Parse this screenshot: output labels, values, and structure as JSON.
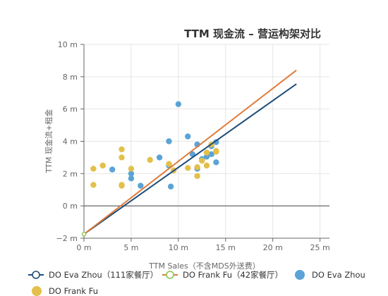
{
  "chart_data": {
    "type": "scatter",
    "title": "TTM 现金流 – 营运构架对比",
    "xlabel": "TTM Sales（不含MDS外送费）",
    "ylabel": "TTM 现金流+租金",
    "xlim": [
      0,
      26
    ],
    "ylim": [
      -2,
      10
    ],
    "x_ticks": [
      0,
      5,
      10,
      15,
      20,
      25
    ],
    "x_tick_labels": [
      "0 m",
      "5 m",
      "10 m",
      "15 m",
      "20 m",
      "25 m"
    ],
    "y_ticks": [
      -2,
      0,
      2,
      4,
      6,
      8,
      10
    ],
    "y_tick_labels": [
      "−2 m",
      "0 m",
      "2 m",
      "4 m",
      "6 m",
      "8 m",
      "10 m"
    ],
    "grid": true,
    "legend_position": "bottom",
    "series": [
      {
        "name": "DO Eva Zhou（111家餐厅）",
        "kind": "trendline",
        "color": "#1f4e79",
        "x": [
          0,
          22.5
        ],
        "y": [
          -1.75,
          7.55
        ]
      },
      {
        "name": "DO Frank Fu（42家餐厅）",
        "kind": "trendline",
        "color": "#e07b39",
        "x": [
          0,
          22.5
        ],
        "y": [
          -1.75,
          8.4
        ]
      },
      {
        "name": "DO Eva Zhou",
        "kind": "points",
        "color": "#5ba3d6",
        "x": [
          3,
          5,
          5,
          6,
          8,
          9,
          9.2,
          10,
          11,
          11.5,
          12,
          12.5,
          13,
          13,
          13.5,
          14,
          14,
          9,
          12,
          13.5
        ],
        "y": [
          2.25,
          2,
          1.7,
          1.25,
          3,
          4,
          1.2,
          6.3,
          4.3,
          3.2,
          3.8,
          2.9,
          3.05,
          3.3,
          3.7,
          3.95,
          2.7,
          2.5,
          2.3,
          3.2
        ]
      },
      {
        "name": "DO Frank Fu",
        "kind": "points",
        "color": "#e3c04a",
        "x": [
          1,
          1,
          2,
          4,
          4,
          4,
          5,
          7,
          9,
          9.5,
          11,
          12,
          12,
          12.5,
          13,
          13,
          13.5,
          14,
          14,
          4
        ],
        "y": [
          2.3,
          1.3,
          2.5,
          3.5,
          3,
          1.3,
          2.3,
          2.85,
          2.6,
          2.2,
          2.35,
          2.4,
          1.85,
          2.8,
          2.5,
          3.3,
          3.8,
          3.4,
          3.35,
          1.25
        ]
      }
    ]
  }
}
